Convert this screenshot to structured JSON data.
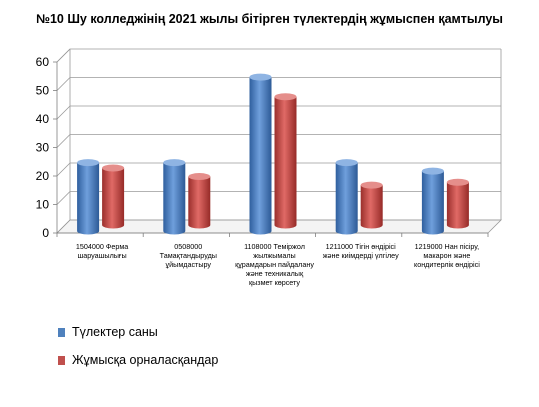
{
  "chart_data": {
    "type": "bar",
    "title": "№10 Шу колледжінің 2021 жылы бітірген түлектердің жұмыспен қамтылуы",
    "categories": [
      "1504000 Ферма шаруашылығы",
      "0508000 Тамақтандыруды ұйымдастыру",
      "1108000 Теміржол жылжымалы құрамдарын пайдалану және техникалық қызмет көрсету",
      "1211000 Тігін өндірісі және киімдерді үлгілеу",
      "1219000 Нан пісіру, макарон және кондитерлік өндірісі"
    ],
    "series": [
      {
        "name": "Түлектер саны",
        "values": [
          24,
          24,
          54,
          24,
          21
        ],
        "color": "#4f81bd"
      },
      {
        "name": "Жұмысқа орналасқандар",
        "values": [
          20,
          17,
          45,
          14,
          15
        ],
        "color": "#c0504d"
      }
    ],
    "yticks": [
      0,
      10,
      20,
      30,
      40,
      50,
      60
    ],
    "ylim": [
      0,
      60
    ],
    "grid": true,
    "legend_position": "bottom-left",
    "xlabel": "",
    "ylabel": ""
  }
}
